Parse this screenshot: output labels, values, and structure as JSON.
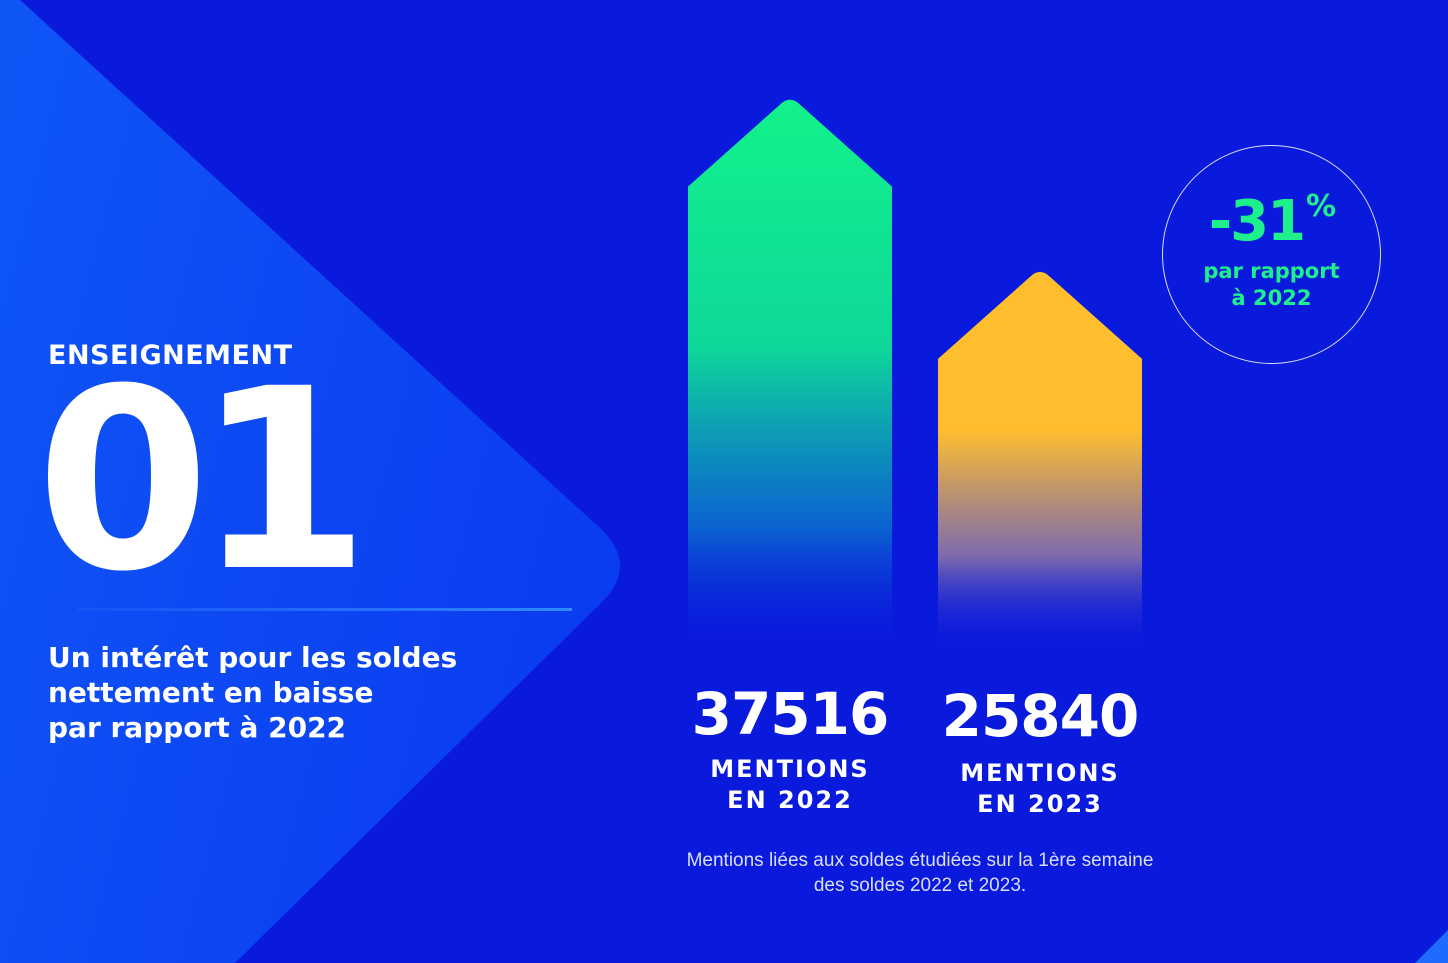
{
  "section": {
    "kicker": "ENSEIGNEMENT",
    "number": "01",
    "headline": [
      "Un intérêt pour les soldes",
      "nettement en baisse",
      "par rapport à 2022"
    ]
  },
  "colors": {
    "background": "#0a1adc",
    "panel": "#0d50f4",
    "bar_2022": "#12f28a",
    "bar_2023": "#ffbe2e",
    "accent_text": "#1ef08c"
  },
  "chart_data": {
    "type": "bar",
    "categories": [
      "2022",
      "2023"
    ],
    "values": [
      37516,
      25840
    ],
    "value_labels": [
      "37516",
      "25840"
    ],
    "category_captions": [
      [
        "MENTIONS",
        "EN 2022"
      ],
      [
        "MENTIONS",
        "EN 2023"
      ]
    ],
    "ylim": [
      0,
      40000
    ],
    "grid": false,
    "legend": "none",
    "bar_shape": "arrow",
    "change": {
      "value": "-31",
      "unit": "%",
      "label": [
        "par rapport",
        "à 2022"
      ]
    }
  },
  "footnote": [
    "Mentions liées aux soldes étudiées sur la 1ère semaine",
    "des soldes  2022 et 2023."
  ]
}
